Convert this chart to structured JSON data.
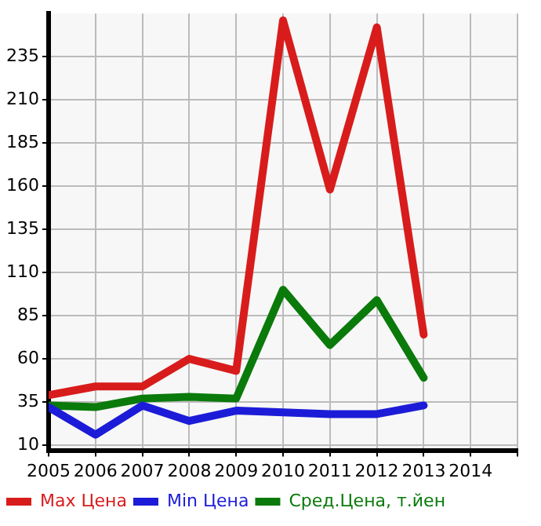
{
  "chart_data": {
    "type": "line",
    "x": [
      2005,
      2006,
      2007,
      2008,
      2009,
      2010,
      2011,
      2012,
      2013
    ],
    "series": [
      {
        "name": "Max Цена",
        "color": "#d81c1c",
        "values": [
          39,
          44,
          44,
          60,
          53,
          256,
          158,
          252,
          74
        ]
      },
      {
        "name": "Min Цена",
        "color": "#1c1cd8",
        "values": [
          32,
          16,
          33,
          24,
          30,
          29,
          28,
          28,
          33
        ]
      },
      {
        "name": "Сред.Цена, т.йен",
        "color": "#0a7a0a",
        "values": [
          33,
          32,
          37,
          38,
          37,
          100,
          68,
          94,
          49
        ]
      }
    ],
    "xlim": [
      2005,
      2015
    ],
    "xticks": [
      2005,
      2006,
      2007,
      2008,
      2009,
      2010,
      2011,
      2012,
      2013,
      2014,
      {
        "value": 2015,
        "label": null
      }
    ],
    "ylim": [
      7,
      260
    ],
    "yticks": [
      10,
      35,
      60,
      85,
      110,
      135,
      160,
      185,
      210,
      235
    ],
    "grid": true,
    "legend": "bottom",
    "marker": "none",
    "line_style": "solid"
  }
}
